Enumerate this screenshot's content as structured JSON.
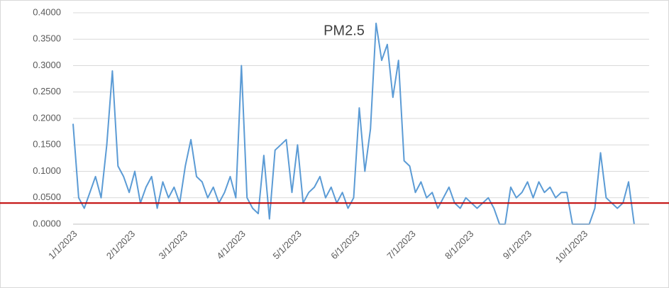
{
  "chart_data": {
    "type": "line",
    "title": "PM2.5",
    "x": [
      "1/1/2023",
      "1/4/2023",
      "1/7/2023",
      "1/10/2023",
      "1/13/2023",
      "1/16/2023",
      "1/19/2023",
      "1/22/2023",
      "1/25/2023",
      "1/28/2023",
      "1/31/2023",
      "2/3/2023",
      "2/6/2023",
      "2/9/2023",
      "2/12/2023",
      "2/15/2023",
      "2/18/2023",
      "2/21/2023",
      "2/24/2023",
      "2/27/2023",
      "3/2/2023",
      "3/5/2023",
      "3/8/2023",
      "3/11/2023",
      "3/14/2023",
      "3/17/2023",
      "3/20/2023",
      "3/23/2023",
      "3/26/2023",
      "3/29/2023",
      "4/1/2023",
      "4/4/2023",
      "4/7/2023",
      "4/10/2023",
      "4/13/2023",
      "4/16/2023",
      "4/19/2023",
      "4/22/2023",
      "4/25/2023",
      "4/28/2023",
      "5/1/2023",
      "5/4/2023",
      "5/7/2023",
      "5/10/2023",
      "5/13/2023",
      "5/16/2023",
      "5/19/2023",
      "5/22/2023",
      "5/25/2023",
      "5/28/2023",
      "5/31/2023",
      "6/3/2023",
      "6/6/2023",
      "6/9/2023",
      "6/12/2023",
      "6/15/2023",
      "6/18/2023",
      "6/21/2023",
      "6/24/2023",
      "6/27/2023",
      "6/30/2023",
      "7/3/2023",
      "7/6/2023",
      "7/9/2023",
      "7/12/2023",
      "7/15/2023",
      "7/18/2023",
      "7/21/2023",
      "7/24/2023",
      "7/27/2023",
      "7/30/2023",
      "8/2/2023",
      "8/5/2023",
      "8/8/2023",
      "8/11/2023",
      "8/14/2023",
      "8/17/2023",
      "8/20/2023",
      "8/23/2023",
      "8/26/2023",
      "8/29/2023",
      "9/1/2023",
      "9/4/2023",
      "9/7/2023",
      "9/10/2023",
      "9/13/2023",
      "9/16/2023",
      "9/19/2023",
      "9/22/2023",
      "9/25/2023",
      "9/28/2023",
      "10/1/2023",
      "10/4/2023",
      "10/7/2023",
      "10/10/2023",
      "10/13/2023",
      "10/16/2023",
      "10/19/2023",
      "10/22/2023",
      "10/25/2023",
      "10/28/2023"
    ],
    "series": [
      {
        "color": "#5b9bd5",
        "values": [
          0.19,
          0.05,
          0.03,
          0.06,
          0.09,
          0.05,
          0.15,
          0.29,
          0.11,
          0.09,
          0.06,
          0.1,
          0.04,
          0.07,
          0.09,
          0.03,
          0.08,
          0.05,
          0.07,
          0.04,
          0.11,
          0.16,
          0.09,
          0.08,
          0.05,
          0.07,
          0.04,
          0.06,
          0.09,
          0.05,
          0.3,
          0.05,
          0.03,
          0.02,
          0.13,
          0.01,
          0.14,
          0.15,
          0.16,
          0.06,
          0.15,
          0.04,
          0.06,
          0.07,
          0.09,
          0.05,
          0.07,
          0.04,
          0.06,
          0.03,
          0.05,
          0.22,
          0.1,
          0.18,
          0.38,
          0.31,
          0.34,
          0.24,
          0.31,
          0.12,
          0.11,
          0.06,
          0.08,
          0.05,
          0.06,
          0.03,
          0.05,
          0.07,
          0.04,
          0.03,
          0.05,
          0.04,
          0.03,
          0.04,
          0.05,
          0.03,
          0.0,
          0.0,
          0.07,
          0.05,
          0.06,
          0.08,
          0.05,
          0.08,
          0.06,
          0.07,
          0.05,
          0.06,
          0.06,
          0.0,
          0.0,
          0.0,
          0.0,
          0.03,
          0.135,
          0.05,
          0.04,
          0.03,
          0.04,
          0.08,
          0.0
        ]
      }
    ],
    "xlim": [
      "1/1/2023",
      "11/5/2023"
    ],
    "xticks": [
      "1/1/2023",
      "2/1/2023",
      "3/1/2023",
      "4/1/2023",
      "5/1/2023",
      "6/1/2023",
      "7/1/2023",
      "8/1/2023",
      "9/1/2023",
      "10/1/2023"
    ],
    "ylim": [
      0,
      0.4
    ],
    "yticks": [
      {
        "value": 0,
        "label": "0.0000"
      },
      {
        "value": 0.05,
        "label": "0.0500"
      },
      {
        "value": 0.1,
        "label": "0.1000"
      },
      {
        "value": 0.15,
        "label": "0.1500"
      },
      {
        "value": 0.2,
        "label": "0.2000"
      },
      {
        "value": 0.25,
        "label": "0.2500"
      },
      {
        "value": 0.3,
        "label": "0.3000"
      },
      {
        "value": 0.35,
        "label": "0.3500"
      },
      {
        "value": 0.4,
        "label": "0.4000"
      }
    ],
    "grid": true,
    "reference_line": {
      "value": 0.04,
      "color": "#c00000"
    }
  }
}
